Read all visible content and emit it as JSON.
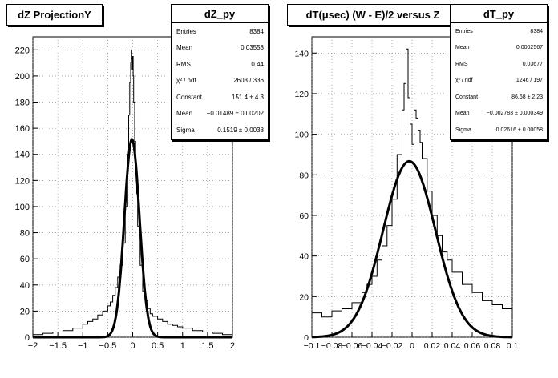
{
  "left": {
    "title": "dZ ProjectionY",
    "stats": {
      "name": "dZ_py",
      "rows": [
        {
          "label": "Entries",
          "value": "8384"
        },
        {
          "label": "Mean",
          "value": "0.03558"
        },
        {
          "label": "RMS",
          "value": "0.44"
        },
        {
          "label": "χ² / ndf",
          "value": "2603 / 336"
        },
        {
          "label": "Constant",
          "value": "151.4 ± 4.3"
        },
        {
          "label": "Mean",
          "value": "−0.01489 ± 0.00202"
        },
        {
          "label": "Sigma",
          "value": "0.1519 ± 0.0038"
        }
      ]
    }
  },
  "right": {
    "title": "dT(μsec) (W - E)/2 versus Z",
    "stats": {
      "name": "dT_py",
      "rows": [
        {
          "label": "Entries",
          "value": "8384"
        },
        {
          "label": "Mean",
          "value": "0.0002567"
        },
        {
          "label": "RMS",
          "value": "0.03677"
        },
        {
          "label": "χ² / ndf",
          "value": "1246 / 197"
        },
        {
          "label": "Constant",
          "value": "86.68 ± 2.23"
        },
        {
          "label": "Mean",
          "value": "−0.002783 ± 0.000349"
        },
        {
          "label": "Sigma",
          "value": "0.02616 ± 0.00058"
        }
      ]
    }
  },
  "chart_data": [
    {
      "type": "line",
      "title": "dZ ProjectionY",
      "xlim": [
        -2,
        2
      ],
      "ylim": [
        0,
        230
      ],
      "xticks": [
        -2,
        -1.5,
        -1,
        -0.5,
        0,
        0.5,
        1,
        1.5,
        2
      ],
      "xtick_labels": [
        "−2",
        "−1.5",
        "−1",
        "−0.5",
        "0",
        "0.5",
        "1",
        "1.5",
        "2"
      ],
      "yticks": [
        0,
        20,
        40,
        60,
        80,
        100,
        120,
        140,
        160,
        180,
        200,
        220
      ],
      "grid": true,
      "series": [
        {
          "kind": "histogram",
          "x": [
            -2.0,
            -1.8,
            -1.6,
            -1.4,
            -1.2,
            -1.0,
            -0.9,
            -0.8,
            -0.7,
            -0.6,
            -0.5,
            -0.45,
            -0.4,
            -0.35,
            -0.3,
            -0.25,
            -0.2,
            -0.15,
            -0.1,
            -0.08,
            -0.06,
            -0.04,
            -0.03,
            -0.02,
            -0.01,
            0.0,
            0.01,
            0.02,
            0.04,
            0.06,
            0.08,
            0.1,
            0.15,
            0.2,
            0.25,
            0.3,
            0.35,
            0.4,
            0.5,
            0.6,
            0.7,
            0.8,
            0.9,
            1.0,
            1.2,
            1.4,
            1.6,
            1.8,
            2.0
          ],
          "y": [
            2,
            3,
            4,
            5,
            7,
            10,
            12,
            14,
            17,
            20,
            24,
            27,
            32,
            38,
            46,
            55,
            72,
            100,
            140,
            170,
            195,
            210,
            220,
            213,
            205,
            215,
            200,
            180,
            150,
            128,
            110,
            85,
            55,
            35,
            28,
            22,
            18,
            16,
            14,
            12,
            10,
            9,
            8,
            7,
            5,
            4,
            3,
            2,
            1
          ]
        },
        {
          "kind": "gaussian-fit",
          "constant": 151.4,
          "mean": -0.01489,
          "sigma": 0.1519
        }
      ]
    },
    {
      "type": "line",
      "title": "dT(μsec) (W - E)/2 versus Z",
      "xlim": [
        -0.1,
        0.1
      ],
      "ylim": [
        0,
        148
      ],
      "xticks": [
        -0.1,
        -0.08,
        -0.06,
        -0.04,
        -0.02,
        0,
        0.02,
        0.04,
        0.06,
        0.08,
        0.1
      ],
      "xtick_labels": [
        "−0.1",
        "−0.08",
        "−0.06",
        "−0.04",
        "−0.02",
        "0",
        "0.02",
        "0.04",
        "0.06",
        "0.08",
        "0.1"
      ],
      "yticks": [
        0,
        20,
        40,
        60,
        80,
        100,
        120,
        140
      ],
      "grid": true,
      "series": [
        {
          "kind": "histogram",
          "x": [
            -0.1,
            -0.09,
            -0.08,
            -0.07,
            -0.06,
            -0.05,
            -0.045,
            -0.04,
            -0.035,
            -0.03,
            -0.025,
            -0.02,
            -0.015,
            -0.01,
            -0.008,
            -0.006,
            -0.004,
            -0.002,
            0.0,
            0.002,
            0.004,
            0.006,
            0.008,
            0.01,
            0.015,
            0.02,
            0.025,
            0.03,
            0.035,
            0.04,
            0.05,
            0.06,
            0.07,
            0.08,
            0.09,
            0.1
          ],
          "y": [
            12,
            10,
            13,
            14,
            17,
            22,
            26,
            30,
            38,
            45,
            55,
            68,
            90,
            112,
            125,
            142,
            118,
            105,
            95,
            112,
            108,
            102,
            96,
            88,
            72,
            60,
            50,
            42,
            38,
            32,
            26,
            22,
            18,
            16,
            14,
            12
          ]
        },
        {
          "kind": "gaussian-fit",
          "constant": 86.68,
          "mean": -0.002783,
          "sigma": 0.02616
        }
      ]
    }
  ]
}
